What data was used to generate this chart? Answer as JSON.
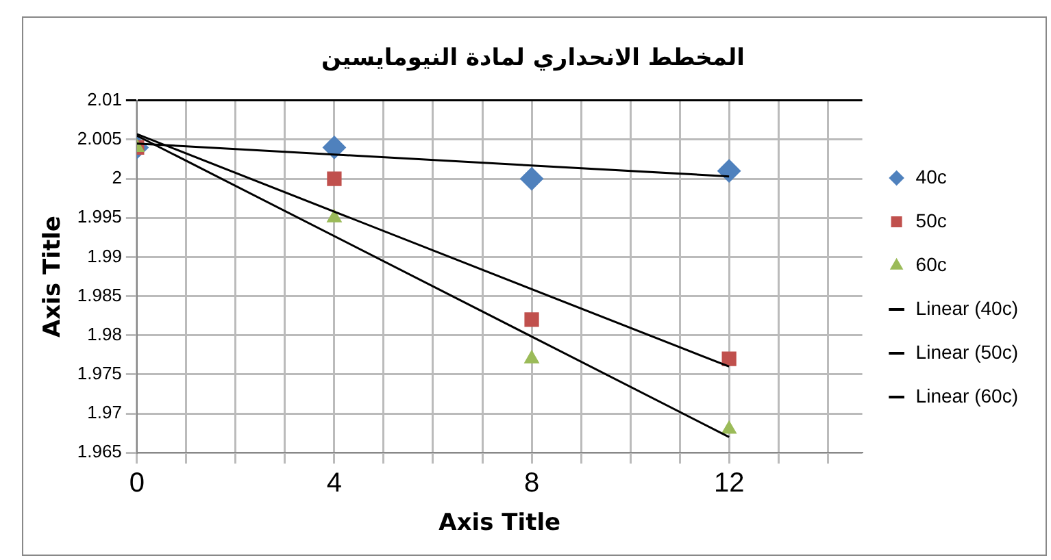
{
  "chart_data": {
    "type": "scatter",
    "title": "المخطط الانحداري لمادة النيومايسين",
    "xlabel": "Axis Title",
    "ylabel": "Axis Title",
    "xlim": [
      0,
      14.7
    ],
    "xticks": [
      0,
      {
        "value": 1,
        "label": null
      },
      {
        "value": 2,
        "label": null
      },
      {
        "value": 3,
        "label": null
      },
      4,
      {
        "value": 5,
        "label": null
      },
      {
        "value": 6,
        "label": null
      },
      {
        "value": 7,
        "label": null
      },
      8,
      {
        "value": 9,
        "label": null
      },
      {
        "value": 10,
        "label": null
      },
      {
        "value": 11,
        "label": null
      },
      12,
      {
        "value": 13,
        "label": null
      },
      {
        "value": 14,
        "label": null
      }
    ],
    "ylim": [
      1.965,
      2.01
    ],
    "yticks": [
      1.965,
      1.97,
      1.975,
      1.98,
      1.985,
      1.99,
      1.995,
      2,
      2.005,
      2.01
    ],
    "grid": true,
    "legend": "right",
    "series": [
      {
        "name": "40c",
        "color": "#4f81bd",
        "marker": "diamond",
        "x": [
          0,
          4,
          8,
          12
        ],
        "values": [
          2.004,
          2.004,
          2.0,
          2.001
        ]
      },
      {
        "name": "50c",
        "color": "#c0504d",
        "marker": "square",
        "x": [
          0,
          4,
          8,
          12
        ],
        "values": [
          2.004,
          2.0,
          1.982,
          1.977
        ]
      },
      {
        "name": "60c",
        "color": "#9bbb59",
        "marker": "triangle",
        "x": [
          0,
          4,
          8,
          12
        ],
        "values": [
          2.004,
          1.995,
          1.977,
          1.968
        ]
      },
      {
        "name": "Linear (40c)",
        "type": "line",
        "color": "#000000",
        "marker": "none",
        "x": [
          0,
          12
        ],
        "values": [
          2.0045,
          2.0003
        ]
      },
      {
        "name": "Linear (50c)",
        "type": "line",
        "color": "#000000",
        "marker": "none",
        "x": [
          0,
          12
        ],
        "values": [
          2.0057,
          1.976
        ]
      },
      {
        "name": "Linear (60c)",
        "type": "line",
        "color": "#000000",
        "marker": "none",
        "x": [
          0,
          12
        ],
        "values": [
          2.0055,
          1.967
        ]
      }
    ]
  }
}
